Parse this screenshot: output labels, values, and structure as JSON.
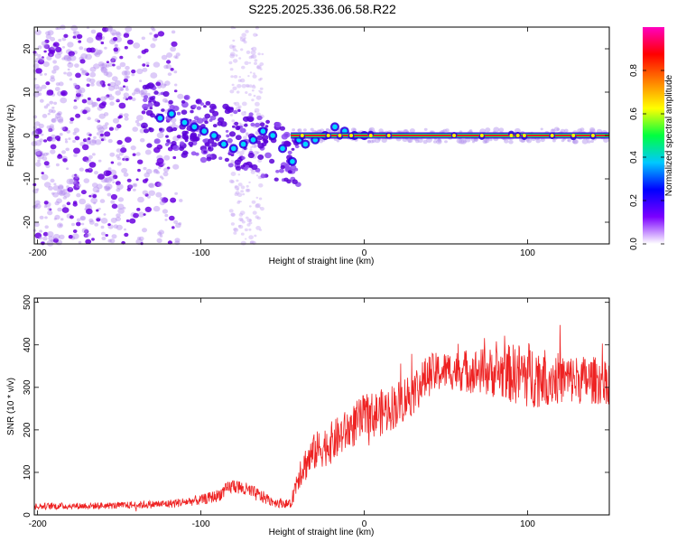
{
  "title": "S225.2025.336.06.58.R22",
  "colors": {
    "snr_line": "#ee2222",
    "spectral_low": "#8a2be2",
    "spectral_ridge": "#ff2020",
    "colorbar": [
      "#ffffff",
      "#7b00ff",
      "#0000ff",
      "#00c8ff",
      "#00ff40",
      "#ffff00",
      "#ff8000",
      "#ff0000",
      "#ff00c0"
    ]
  },
  "chart_data": [
    {
      "type": "heatmap",
      "name": "spectrogram",
      "title": "S225.2025.336.06.58.R22",
      "xlabel": "Height of straight line (km)",
      "ylabel": "Frequency (Hz)",
      "xlim": [
        -202,
        150
      ],
      "ylim": [
        -25,
        25
      ],
      "xticks": [
        -200,
        -100,
        0,
        100
      ],
      "yticks": [
        -20,
        -10,
        0,
        10,
        20
      ],
      "colorbar": {
        "label": "Normalized spectral amplitude",
        "range": [
          0,
          1
        ],
        "ticks": [
          "0.0",
          "0.2",
          "0.4",
          "0.6",
          "0.8"
        ]
      },
      "ridge": {
        "start_x": -45,
        "end_x": 150,
        "frequency": 0,
        "points": [
          [
            -125,
            4
          ],
          [
            -118,
            5
          ],
          [
            -110,
            3
          ],
          [
            -104,
            2
          ],
          [
            -98,
            1
          ],
          [
            -92,
            0
          ],
          [
            -86,
            -2
          ],
          [
            -80,
            -3
          ],
          [
            -74,
            -2
          ],
          [
            -68,
            -1
          ],
          [
            -62,
            1
          ],
          [
            -56,
            0
          ],
          [
            -50,
            -3
          ],
          [
            -44,
            -6
          ],
          [
            -40,
            -1
          ],
          [
            -36,
            -2
          ],
          [
            -30,
            -1
          ],
          [
            -24,
            0
          ],
          [
            -18,
            2
          ],
          [
            -12,
            1
          ],
          [
            -6,
            0
          ],
          [
            0,
            0
          ]
        ]
      }
    },
    {
      "type": "line",
      "name": "snr",
      "xlabel": "Height of straight line (km)",
      "ylabel": "SNR (10 * v/v)",
      "xlim": [
        -202,
        150
      ],
      "ylim": [
        0,
        510
      ],
      "xticks": [
        -200,
        -100,
        0,
        100
      ],
      "yticks": [
        0,
        100,
        200,
        300,
        400,
        500
      ],
      "envelope": {
        "x": [
          -202,
          -150,
          -120,
          -100,
          -90,
          -80,
          -70,
          -55,
          -45,
          -40,
          -30,
          -20,
          -10,
          0,
          10,
          20,
          30,
          40,
          50,
          60,
          80,
          100,
          120,
          150
        ],
        "y": [
          20,
          22,
          26,
          35,
          45,
          70,
          55,
          30,
          25,
          100,
          150,
          170,
          200,
          230,
          240,
          260,
          290,
          330,
          340,
          340,
          335,
          330,
          320,
          315
        ],
        "noise": [
          8,
          8,
          10,
          12,
          15,
          18,
          18,
          12,
          10,
          40,
          45,
          50,
          50,
          55,
          55,
          55,
          55,
          50,
          45,
          50,
          60,
          80,
          60,
          55
        ]
      }
    }
  ]
}
